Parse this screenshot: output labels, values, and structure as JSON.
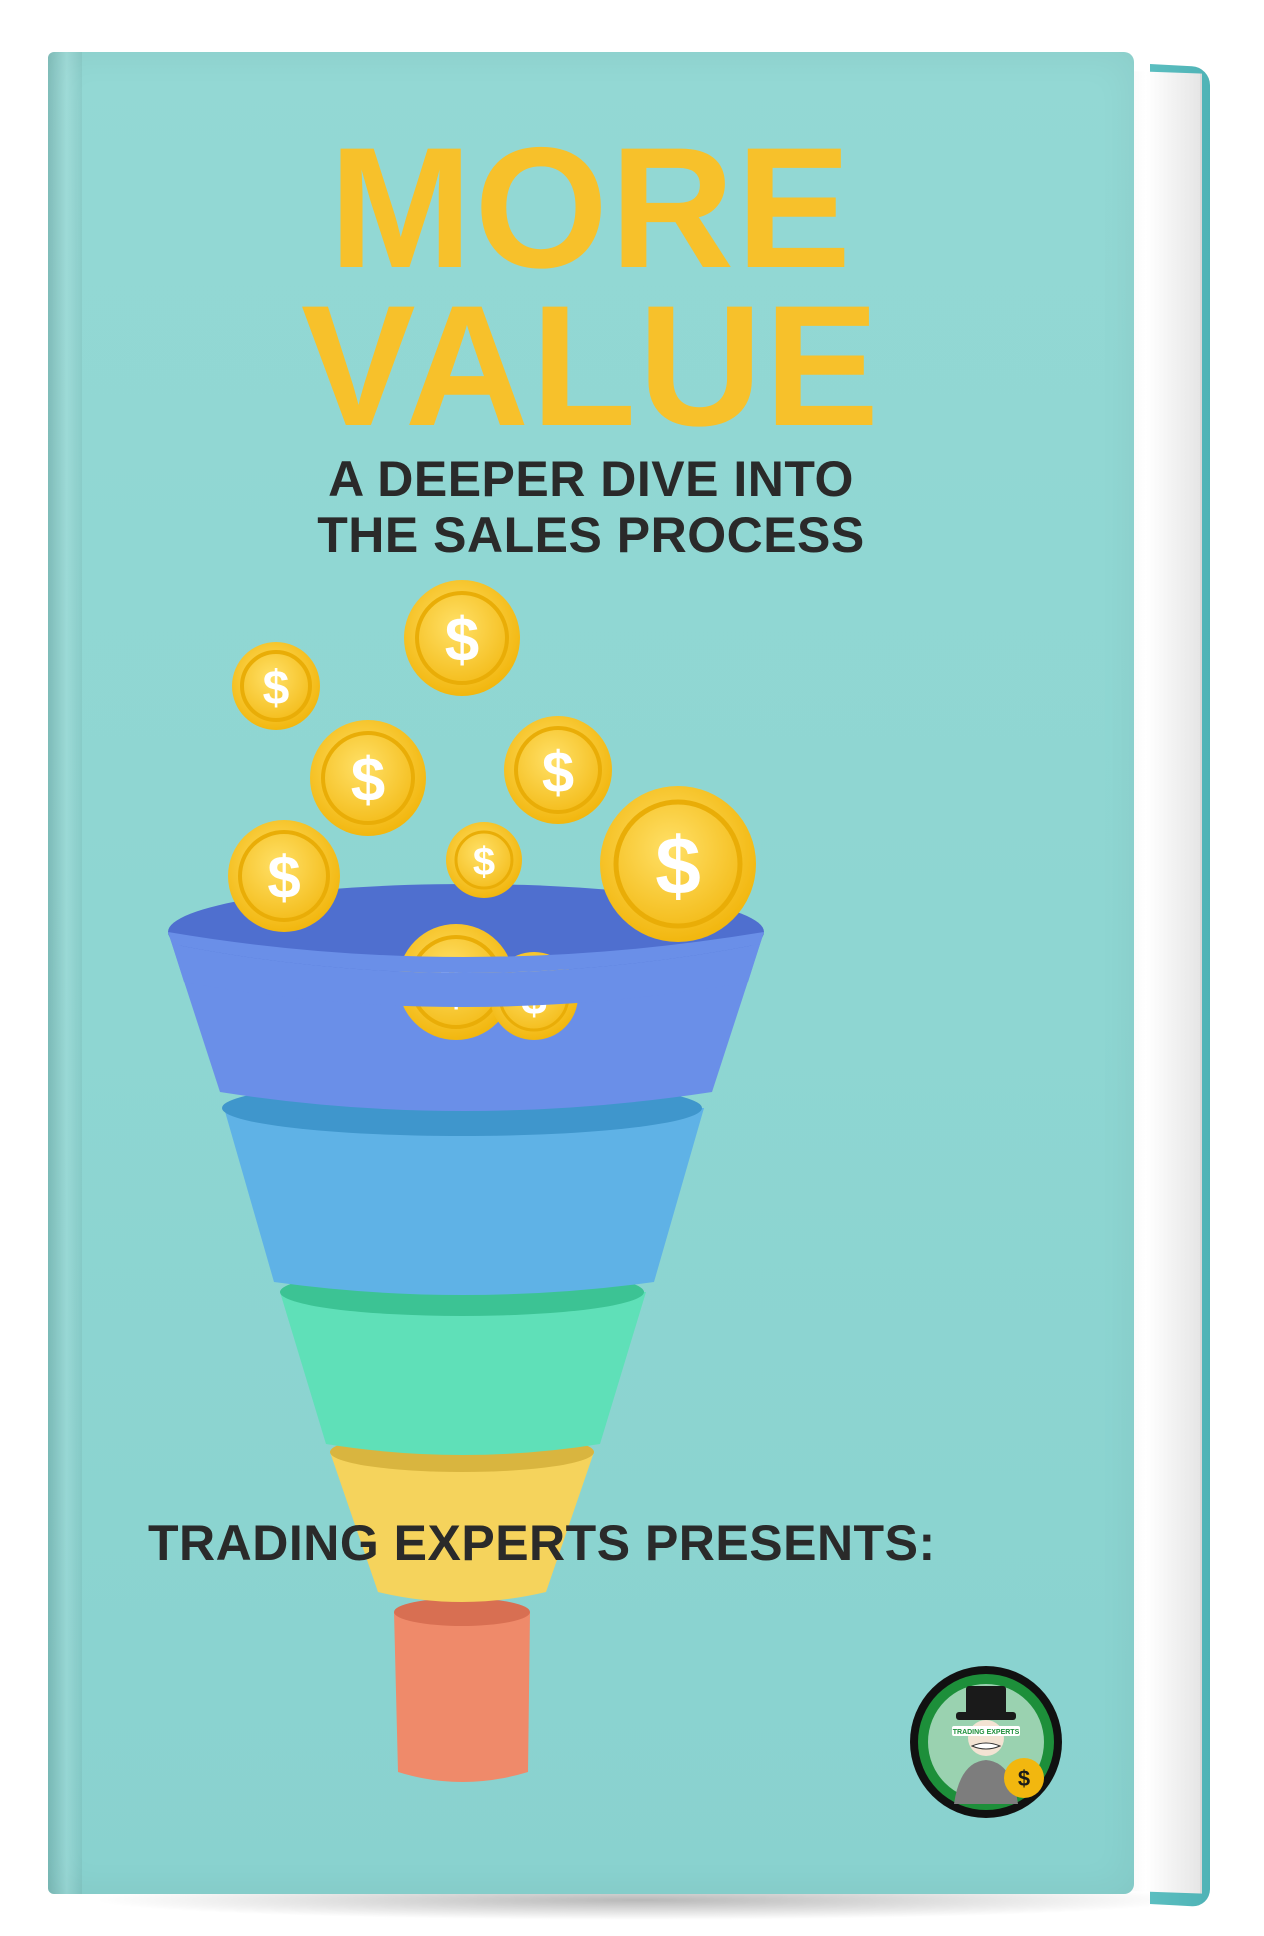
{
  "cover": {
    "title_line1": "MORE",
    "title_line2": "VALUE",
    "subtitle_line1": "A DEEPER DIVE INTO",
    "subtitle_line2": "THE SALES PROCESS",
    "presenter": "TRADING EXPERTS PRESENTS:",
    "coin_symbol": "$",
    "logo_text": "TRADING EXPERTS"
  },
  "colors": {
    "cover_background": "#8ed6d2",
    "title": "#f7c12b",
    "subtitle": "#2a2a2a",
    "funnel_layer_1": "#6a8fe8",
    "funnel_layer_2": "#5fb2e6",
    "funnel_layer_3": "#5fe0b8",
    "funnel_layer_4": "#f5d35c",
    "funnel_spout": "#ef8a6a",
    "coin": "#f7c12b",
    "logo_ring": "#1d8f3a"
  },
  "icons": [
    "dollar-coin-icon",
    "sales-funnel-icon",
    "trading-experts-logo"
  ]
}
